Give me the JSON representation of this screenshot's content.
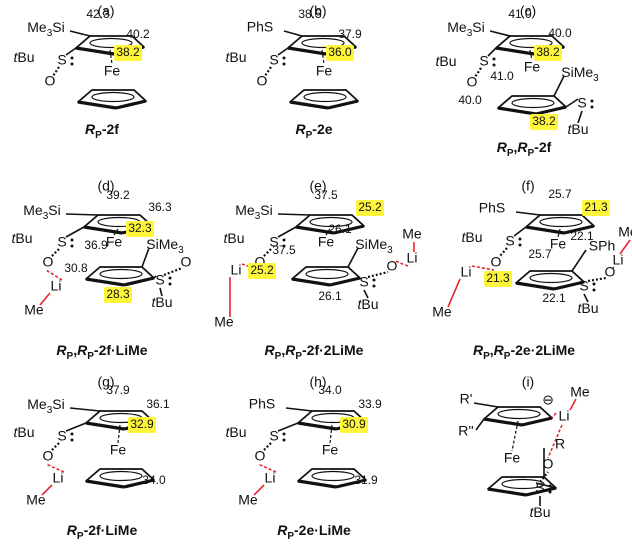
{
  "accent_color": "#e8262c",
  "highlight_color": "#fff53a",
  "panels": [
    {
      "label": "(a)",
      "red_numbers": false,
      "groups": {
        "sub": [
          {
            "text": "Me"
          },
          {
            "text": "3",
            "style": "sub"
          },
          {
            "text": "Si"
          }
        ],
        "tbu": [
          {
            "text": "t",
            "style": "italic"
          },
          {
            "text": "Bu"
          }
        ],
        "s": "S",
        "o": "O",
        "fe": "Fe"
      },
      "numbers": [
        {
          "text": "42.3"
        },
        {
          "text": "40.2"
        },
        {
          "text": "38.2",
          "highlight": true
        }
      ],
      "caption": [
        {
          "text": "R",
          "style": "italic"
        },
        {
          "text": "P",
          "style": "sub"
        },
        {
          "text": "-2f"
        }
      ]
    },
    {
      "label": "(b)",
      "red_numbers": false,
      "groups": {
        "sub": "PhS",
        "tbu": [
          {
            "text": "t",
            "style": "italic"
          },
          {
            "text": "Bu"
          }
        ],
        "s": "S",
        "o": "O",
        "fe": "Fe"
      },
      "numbers": [
        {
          "text": "38.5"
        },
        {
          "text": "37.9"
        },
        {
          "text": "36.0",
          "highlight": true
        }
      ],
      "caption": [
        {
          "text": "R",
          "style": "italic"
        },
        {
          "text": "P",
          "style": "sub"
        },
        {
          "text": "-2e"
        }
      ]
    },
    {
      "label": "(c)",
      "red_numbers": false,
      "groups": {
        "sub": [
          {
            "text": "Me"
          },
          {
            "text": "3",
            "style": "sub"
          },
          {
            "text": "Si"
          }
        ],
        "tbu": [
          {
            "text": "t",
            "style": "italic"
          },
          {
            "text": "Bu"
          }
        ],
        "s": "S",
        "o": "O",
        "fe": "Fe",
        "sime3": [
          {
            "text": "SiMe"
          },
          {
            "text": "3",
            "style": "sub"
          }
        ],
        "s2": "S",
        "tbu2": [
          {
            "text": "t",
            "style": "italic"
          },
          {
            "text": "Bu"
          }
        ]
      },
      "numbers": [
        {
          "text": "41.0"
        },
        {
          "text": "40.0"
        },
        {
          "text": "38.2",
          "highlight": true
        },
        {
          "text": "41.0"
        },
        {
          "text": "40.0"
        },
        {
          "text": "38.2",
          "highlight": true
        }
      ],
      "caption": [
        {
          "text": "R",
          "style": "italic"
        },
        {
          "text": "P",
          "style": "sub"
        },
        {
          "text": ","
        },
        {
          "text": "R",
          "style": "italic"
        },
        {
          "text": "P",
          "style": "sub"
        },
        {
          "text": "-2f"
        }
      ]
    },
    {
      "label": "(d)",
      "red_numbers": true,
      "groups": {
        "sub": [
          {
            "text": "Me"
          },
          {
            "text": "3",
            "style": "sub"
          },
          {
            "text": "Si"
          }
        ],
        "tbu": [
          {
            "text": "t",
            "style": "italic"
          },
          {
            "text": "Bu"
          }
        ],
        "s": "S",
        "o": "O",
        "fe": "Fe",
        "sime3": [
          {
            "text": "SiMe"
          },
          {
            "text": "3",
            "style": "sub"
          }
        ],
        "s2": "S",
        "o2": "O",
        "tbu2": [
          {
            "text": "t",
            "style": "italic"
          },
          {
            "text": "Bu"
          }
        ],
        "li": "Li",
        "me": "Me"
      },
      "numbers": [
        {
          "text": "39.2"
        },
        {
          "text": "36.3"
        },
        {
          "text": "32.3",
          "highlight": true
        },
        {
          "text": "36.9"
        },
        {
          "text": "30.8"
        },
        {
          "text": "28.3",
          "highlight": true
        }
      ],
      "caption": [
        {
          "text": "R",
          "style": "italic"
        },
        {
          "text": "P",
          "style": "sub"
        },
        {
          "text": ","
        },
        {
          "text": "R",
          "style": "italic"
        },
        {
          "text": "P",
          "style": "sub"
        },
        {
          "text": "-2f·LiMe"
        }
      ]
    },
    {
      "label": "(e)",
      "red_numbers": true,
      "groups": {
        "sub": [
          {
            "text": "Me"
          },
          {
            "text": "3",
            "style": "sub"
          },
          {
            "text": "Si"
          }
        ],
        "tbu": [
          {
            "text": "t",
            "style": "italic"
          },
          {
            "text": "Bu"
          }
        ],
        "s": "S",
        "o": "O",
        "fe": "Fe",
        "sime3": [
          {
            "text": "SiMe"
          },
          {
            "text": "3",
            "style": "sub"
          }
        ],
        "s2": "S",
        "o2": "O",
        "tbu2": [
          {
            "text": "t",
            "style": "italic"
          },
          {
            "text": "Bu"
          }
        ],
        "li": "Li",
        "me": "Me",
        "li2": "Li",
        "me2": "Me"
      },
      "numbers": [
        {
          "text": "37.5"
        },
        {
          "text": "25.2",
          "highlight": true
        },
        {
          "text": "26.1"
        },
        {
          "text": "37.5"
        },
        {
          "text": "25.2",
          "highlight": true
        },
        {
          "text": "26.1"
        }
      ],
      "caption": [
        {
          "text": "R",
          "style": "italic"
        },
        {
          "text": "P",
          "style": "sub"
        },
        {
          "text": ","
        },
        {
          "text": "R",
          "style": "italic"
        },
        {
          "text": "P",
          "style": "sub"
        },
        {
          "text": "-2f·2LiMe"
        }
      ]
    },
    {
      "label": "(f)",
      "red_numbers": true,
      "groups": {
        "sub": "PhS",
        "tbu": [
          {
            "text": "t",
            "style": "italic"
          },
          {
            "text": "Bu"
          }
        ],
        "s": "S",
        "o": "O",
        "fe": "Fe",
        "sph": "SPh",
        "s2": "S",
        "o2": "O",
        "tbu2": [
          {
            "text": "t",
            "style": "italic"
          },
          {
            "text": "Bu"
          }
        ],
        "li": "Li",
        "me": "Me",
        "li2": "Li",
        "me2": "Me"
      },
      "numbers": [
        {
          "text": "25.7"
        },
        {
          "text": "21.3",
          "highlight": true
        },
        {
          "text": "22.1"
        },
        {
          "text": "25.7"
        },
        {
          "text": "21.3",
          "highlight": true
        },
        {
          "text": "22.1"
        }
      ],
      "caption": [
        {
          "text": "R",
          "style": "italic"
        },
        {
          "text": "P",
          "style": "sub"
        },
        {
          "text": ","
        },
        {
          "text": "R",
          "style": "italic"
        },
        {
          "text": "P",
          "style": "sub"
        },
        {
          "text": "-2e·2LiMe"
        }
      ]
    },
    {
      "label": "(g)",
      "red_numbers": true,
      "groups": {
        "sub": [
          {
            "text": "Me"
          },
          {
            "text": "3",
            "style": "sub"
          },
          {
            "text": "Si"
          }
        ],
        "tbu": [
          {
            "text": "t",
            "style": "italic"
          },
          {
            "text": "Bu"
          }
        ],
        "s": "S",
        "o": "O",
        "fe": "Fe",
        "li": "Li",
        "me": "Me"
      },
      "numbers": [
        {
          "text": "37.9"
        },
        {
          "text": "36.1"
        },
        {
          "text": "32.9",
          "highlight": true
        },
        {
          "text": "34.0"
        }
      ],
      "caption": [
        {
          "text": "R",
          "style": "italic"
        },
        {
          "text": "P",
          "style": "sub"
        },
        {
          "text": "-2f·LiMe"
        }
      ]
    },
    {
      "label": "(h)",
      "red_numbers": true,
      "groups": {
        "sub": "PhS",
        "tbu": [
          {
            "text": "t",
            "style": "italic"
          },
          {
            "text": "Bu"
          }
        ],
        "s": "S",
        "o": "O",
        "fe": "Fe",
        "li": "Li",
        "me": "Me"
      },
      "numbers": [
        {
          "text": "34.0"
        },
        {
          "text": "33.9"
        },
        {
          "text": "30.9",
          "highlight": true
        },
        {
          "text": "31.9"
        }
      ],
      "caption": [
        {
          "text": "R",
          "style": "italic"
        },
        {
          "text": "P",
          "style": "sub"
        },
        {
          "text": "-2e·LiMe"
        }
      ]
    },
    {
      "label": "(i)",
      "red_numbers": true,
      "groups": {
        "r1": "R'",
        "r2": "R''",
        "minus": "⊖",
        "fe": "Fe",
        "r": "R",
        "o": "O",
        "s": "S",
        "tbu": [
          {
            "text": "t",
            "style": "italic"
          },
          {
            "text": "Bu"
          }
        ],
        "li": "Li",
        "me": "Me"
      },
      "numbers": [],
      "caption": []
    }
  ]
}
